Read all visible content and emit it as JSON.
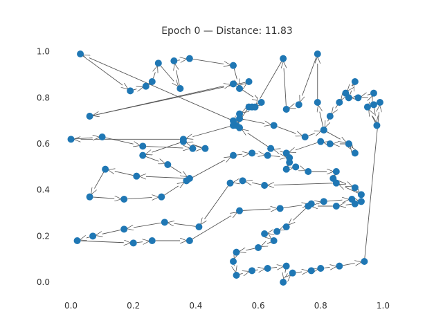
{
  "chart_data": {
    "type": "scatter",
    "title": "Epoch 0 — Distance: 11.83",
    "xlabel": "",
    "ylabel": "",
    "xlim": [
      -0.05,
      1.05
    ],
    "ylim": [
      -0.06,
      1.05
    ],
    "x_ticks": [
      "0.0",
      "0.2",
      "0.4",
      "0.6",
      "0.8",
      "1.0"
    ],
    "y_ticks": [
      "0.0",
      "0.2",
      "0.4",
      "0.6",
      "0.8",
      "1.0"
    ],
    "x_tick_values": [
      0.0,
      0.2,
      0.4,
      0.6,
      0.8,
      1.0
    ],
    "y_tick_values": [
      0.0,
      0.2,
      0.4,
      0.6,
      0.8,
      1.0
    ],
    "grid": false,
    "marker_color": "#1f77b4",
    "arrow_color": "#555555",
    "tour": [
      [
        0.03,
        0.99
      ],
      [
        0.19,
        0.83
      ],
      [
        0.24,
        0.85
      ],
      [
        0.26,
        0.87
      ],
      [
        0.28,
        0.95
      ],
      [
        0.35,
        0.84
      ],
      [
        0.33,
        0.96
      ],
      [
        0.38,
        0.97
      ],
      [
        0.52,
        0.94
      ],
      [
        0.54,
        0.84
      ],
      [
        0.57,
        0.87
      ],
      [
        0.06,
        0.72
      ],
      [
        0.52,
        0.86
      ],
      [
        0.61,
        0.78
      ],
      [
        0.58,
        0.76
      ],
      [
        0.54,
        0.73
      ],
      [
        0.52,
        0.68
      ],
      [
        0.36,
        0.62
      ],
      [
        0.0,
        0.62
      ],
      [
        0.1,
        0.63
      ],
      [
        0.23,
        0.59
      ],
      [
        0.39,
        0.58
      ],
      [
        0.43,
        0.58
      ],
      [
        0.36,
        0.61
      ],
      [
        0.23,
        0.55
      ],
      [
        0.31,
        0.51
      ],
      [
        0.38,
        0.45
      ],
      [
        0.21,
        0.46
      ],
      [
        0.11,
        0.49
      ],
      [
        0.06,
        0.37
      ],
      [
        0.17,
        0.36
      ],
      [
        0.29,
        0.37
      ],
      [
        0.37,
        0.44
      ],
      [
        0.52,
        0.55
      ],
      [
        0.58,
        0.56
      ],
      [
        0.63,
        0.55
      ],
      [
        0.7,
        0.54
      ],
      [
        0.7,
        0.52
      ],
      [
        0.69,
        0.49
      ],
      [
        0.72,
        0.5
      ],
      [
        0.76,
        0.48
      ],
      [
        0.85,
        0.48
      ],
      [
        0.84,
        0.45
      ],
      [
        0.91,
        0.41
      ],
      [
        0.93,
        0.38
      ],
      [
        0.85,
        0.43
      ],
      [
        0.62,
        0.42
      ],
      [
        0.55,
        0.44
      ],
      [
        0.51,
        0.43
      ],
      [
        0.41,
        0.24
      ],
      [
        0.3,
        0.26
      ],
      [
        0.17,
        0.23
      ],
      [
        0.07,
        0.2
      ],
      [
        0.02,
        0.18
      ],
      [
        0.2,
        0.17
      ],
      [
        0.26,
        0.18
      ],
      [
        0.38,
        0.18
      ],
      [
        0.54,
        0.31
      ],
      [
        0.67,
        0.32
      ],
      [
        0.77,
        0.34
      ],
      [
        0.81,
        0.35
      ],
      [
        0.9,
        0.36
      ],
      [
        0.93,
        0.35
      ],
      [
        0.91,
        0.34
      ],
      [
        0.85,
        0.33
      ],
      [
        0.76,
        0.33
      ],
      [
        0.69,
        0.24
      ],
      [
        0.66,
        0.22
      ],
      [
        0.62,
        0.21
      ],
      [
        0.65,
        0.18
      ],
      [
        0.6,
        0.15
      ],
      [
        0.53,
        0.13
      ],
      [
        0.52,
        0.09
      ],
      [
        0.53,
        0.03
      ],
      [
        0.58,
        0.05
      ],
      [
        0.63,
        0.06
      ],
      [
        0.69,
        0.07
      ],
      [
        0.68,
        0.0
      ],
      [
        0.71,
        0.04
      ],
      [
        0.77,
        0.05
      ],
      [
        0.8,
        0.06
      ],
      [
        0.86,
        0.07
      ],
      [
        0.94,
        0.09
      ],
      [
        0.99,
        0.78
      ],
      [
        0.97,
        0.77
      ],
      [
        0.98,
        0.68
      ],
      [
        0.95,
        0.76
      ],
      [
        0.97,
        0.82
      ],
      [
        0.92,
        0.8
      ],
      [
        0.89,
        0.8
      ],
      [
        0.91,
        0.87
      ],
      [
        0.88,
        0.82
      ],
      [
        0.86,
        0.78
      ],
      [
        0.83,
        0.72
      ],
      [
        0.81,
        0.66
      ],
      [
        0.79,
        0.78
      ],
      [
        0.79,
        0.99
      ],
      [
        0.73,
        0.77
      ],
      [
        0.69,
        0.75
      ],
      [
        0.68,
        0.97
      ],
      [
        0.59,
        0.76
      ],
      [
        0.57,
        0.76
      ],
      [
        0.53,
        0.68
      ],
      [
        0.54,
        0.71
      ],
      [
        0.65,
        0.68
      ],
      [
        0.75,
        0.63
      ],
      [
        0.81,
        0.66
      ],
      [
        0.89,
        0.6
      ],
      [
        0.91,
        0.56
      ],
      [
        0.89,
        0.6
      ],
      [
        0.83,
        0.6
      ],
      [
        0.8,
        0.61
      ],
      [
        0.69,
        0.56
      ],
      [
        0.64,
        0.58
      ],
      [
        0.54,
        0.67
      ],
      [
        0.52,
        0.7
      ]
    ]
  }
}
